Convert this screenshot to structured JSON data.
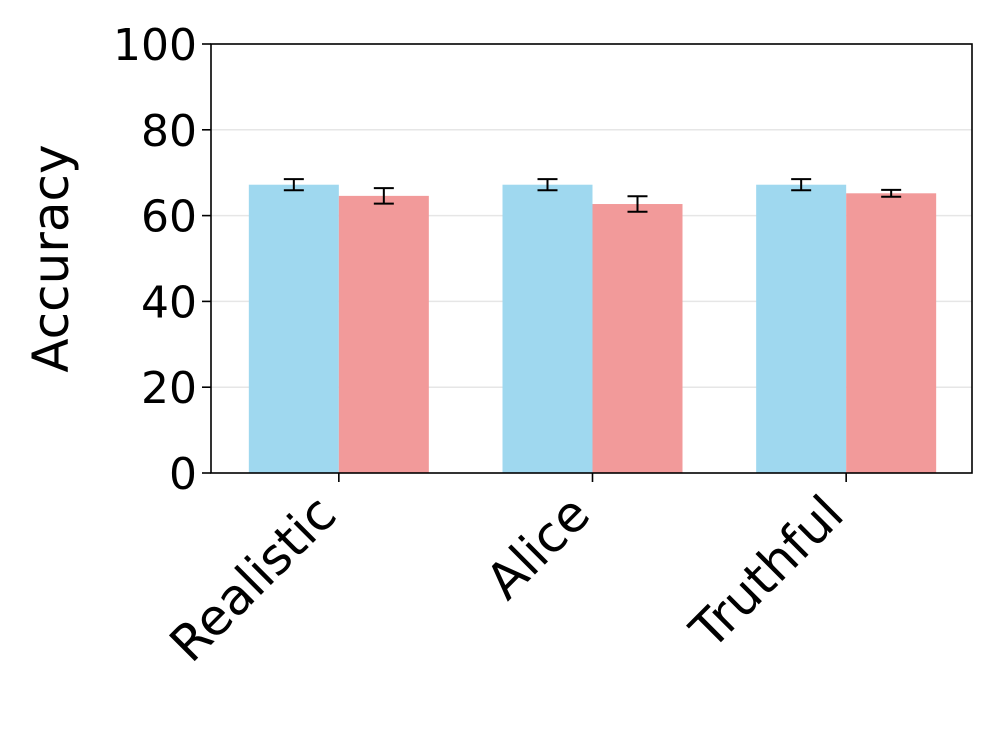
{
  "chart_data": {
    "type": "bar",
    "categories": [
      "Realistic",
      "Alice",
      "Truthful"
    ],
    "series": [
      {
        "color": "#9fd8ef",
        "values": [
          67.2,
          67.2,
          67.2
        ],
        "errors": [
          1.3,
          1.3,
          1.3
        ]
      },
      {
        "color": "#f29a9a",
        "values": [
          64.6,
          62.7,
          65.2
        ],
        "errors": [
          1.8,
          1.8,
          0.8
        ]
      }
    ],
    "xlabel": "",
    "ylabel": "Accuracy",
    "ylim": [
      0,
      100
    ],
    "yticks": [
      0,
      20,
      40,
      60,
      80,
      100
    ],
    "grid": "y",
    "legend": "none"
  }
}
